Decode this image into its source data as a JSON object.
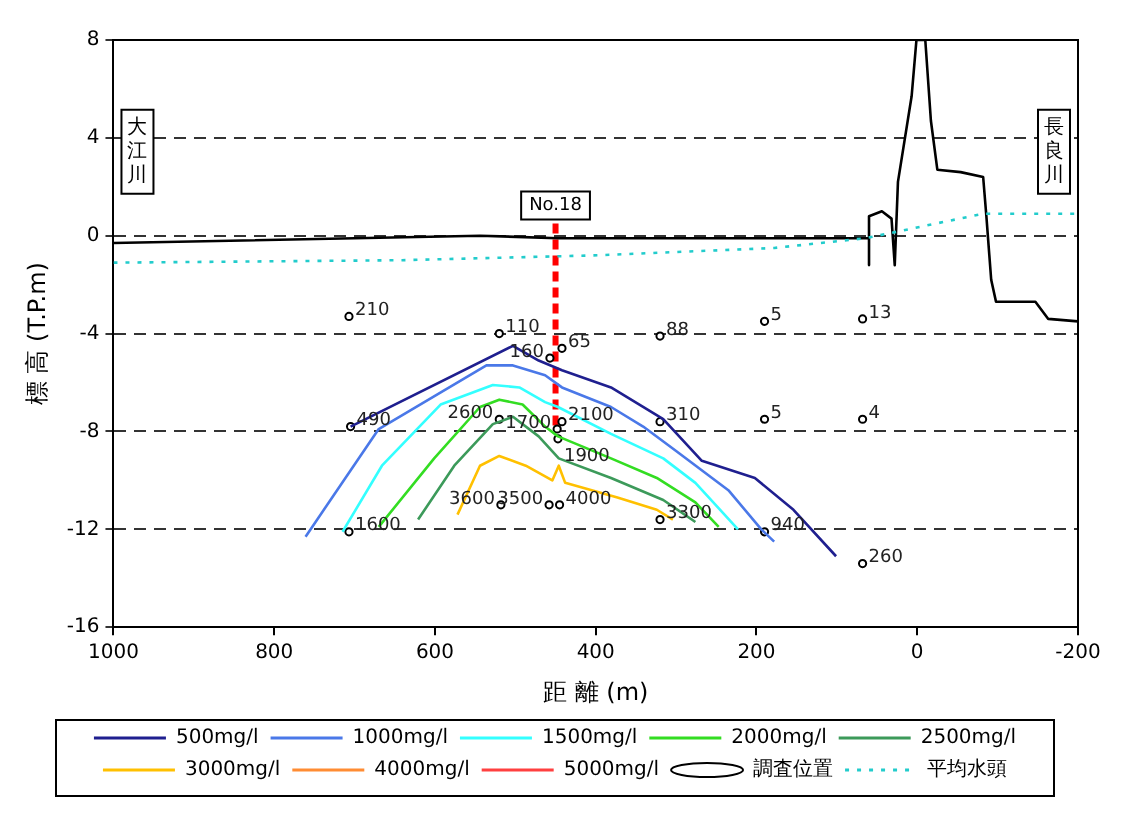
{
  "chart_data": {
    "type": "line",
    "xlabel": "距 離 (m)",
    "ylabel": "標 高 (T.P.m)",
    "xlim": [
      1000,
      -200
    ],
    "xticks": [
      1000,
      800,
      600,
      400,
      200,
      0,
      -200
    ],
    "ylim": [
      -16,
      8
    ],
    "yticks": [
      -16,
      -12,
      -8,
      -4,
      0,
      4,
      8
    ],
    "grid": "y",
    "legend": "bottom",
    "annotations": [
      "大江川",
      "長良川",
      {
        "text": "No.18",
        "x": 450,
        "y": 0.5
      },
      {
        "text": "210",
        "x": 707,
        "y": -3.3
      },
      {
        "text": "110",
        "x": 520,
        "y": -4.0
      },
      {
        "text": "65",
        "x": 442,
        "y": -4.6
      },
      {
        "text": "160",
        "x": 457,
        "y": -5.0
      },
      {
        "text": "490",
        "x": 705,
        "y": -7.8
      },
      {
        "text": "2600",
        "x": 520,
        "y": -7.5
      },
      {
        "text": "1700",
        "x": 448,
        "y": -7.9
      },
      {
        "text": "2100",
        "x": 442,
        "y": -7.6
      },
      {
        "text": "1900",
        "x": 447,
        "y": -8.3
      },
      {
        "text": "1600",
        "x": 707,
        "y": -12.1
      },
      {
        "text": "3600",
        "x": 518,
        "y": -11.0
      },
      {
        "text": "3500",
        "x": 458,
        "y": -11.0
      },
      {
        "text": "4000",
        "x": 445,
        "y": -11.0
      },
      {
        "text": "88",
        "x": 320,
        "y": -4.1
      },
      {
        "text": "5",
        "x": 190,
        "y": -3.5
      },
      {
        "text": "13",
        "x": 68,
        "y": -3.4
      },
      {
        "text": "310",
        "x": 320,
        "y": -7.6
      },
      {
        "text": "5",
        "x": 190,
        "y": -7.5
      },
      {
        "text": "4",
        "x": 68,
        "y": -7.5
      },
      {
        "text": "3300",
        "x": 320,
        "y": -11.6
      },
      {
        "text": "940",
        "x": 190,
        "y": -12.1
      },
      {
        "text": "260",
        "x": 68,
        "y": -13.4
      }
    ],
    "series": [
      {
        "name": "500mg/l",
        "color": "#1f1f8f",
        "x": [
          705,
          503,
          471,
          442,
          381,
          316,
          268,
          202,
          154,
          101
        ],
        "values": [
          -7.8,
          -4.5,
          -5.1,
          -5.5,
          -6.2,
          -7.5,
          -9.2,
          -9.9,
          -11.2,
          -13.1
        ]
      },
      {
        "name": "1000mg/l",
        "color": "#4a78e8",
        "x": [
          761,
          670,
          536,
          503,
          463,
          442,
          381,
          341,
          300,
          235,
          194,
          178
        ],
        "values": [
          -12.3,
          -7.9,
          -5.3,
          -5.3,
          -5.7,
          -6.2,
          -7.0,
          -7.8,
          -8.8,
          -10.4,
          -12.0,
          -12.5
        ]
      },
      {
        "name": "1500mg/l",
        "color": "#33ffff",
        "x": [
          715,
          666,
          593,
          528,
          495,
          463,
          447,
          381,
          316,
          276,
          223
        ],
        "values": [
          -12.1,
          -9.4,
          -6.9,
          -6.1,
          -6.2,
          -6.8,
          -7.0,
          -8.1,
          -9.1,
          -10.1,
          -12.0
        ]
      },
      {
        "name": "2000mg/l",
        "color": "#33dd22",
        "x": [
          670,
          601,
          544,
          520,
          491,
          463,
          447,
          381,
          324,
          276,
          247
        ],
        "values": [
          -11.9,
          -9.1,
          -7.0,
          -6.7,
          -6.9,
          -7.8,
          -8.2,
          -9.1,
          -9.9,
          -10.9,
          -11.9
        ]
      },
      {
        "name": "2500mg/l",
        "color": "#3c9a5a",
        "x": [
          621,
          576,
          528,
          503,
          471,
          446,
          381,
          316,
          276
        ],
        "values": [
          -11.6,
          -9.4,
          -7.7,
          -7.4,
          -8.2,
          -9.1,
          -9.9,
          -10.8,
          -11.7
        ]
      },
      {
        "name": "3000mg/l",
        "color": "#ffc000",
        "x": [
          572,
          544,
          520,
          487,
          454,
          446,
          438,
          373,
          324,
          304
        ],
        "values": [
          -11.4,
          -9.4,
          -9.0,
          -9.4,
          -10.0,
          -9.4,
          -10.1,
          -10.7,
          -11.2,
          -11.6
        ]
      },
      {
        "name": "4000mg/l",
        "color": "#ff8c33"
      },
      {
        "name": "5000mg/l",
        "color": "#ff4040"
      },
      {
        "name": "調査位置",
        "type": "scatter",
        "color": "#000000",
        "marker": "circle",
        "x": [
          707,
          520,
          442,
          457,
          705,
          520,
          448,
          442,
          447,
          707,
          518,
          458,
          445,
          320,
          190,
          68,
          320,
          190,
          68,
          320,
          190,
          68
        ],
        "values": [
          -3.3,
          -4.0,
          -4.6,
          -5.0,
          -7.8,
          -7.5,
          -7.9,
          -7.6,
          -8.3,
          -12.1,
          -11.0,
          -11.0,
          -11.0,
          -4.1,
          -3.5,
          -3.4,
          -7.6,
          -7.5,
          -7.5,
          -11.6,
          -12.1,
          -13.4
        ]
      },
      {
        "name": "平均水頭",
        "color": "#22cccc",
        "line_style": "dotted",
        "x": [
          1000,
          641,
          398,
          178,
          64,
          -82,
          -200
        ],
        "values": [
          -1.1,
          -1.0,
          -0.8,
          -0.5,
          -0.1,
          0.9,
          0.9
        ]
      },
      {
        "color": "#000000",
        "x": [
          1000,
          544,
          447,
          60,
          60,
          60,
          44,
          32,
          28,
          24,
          7,
          1,
          -10,
          -17,
          -25,
          -54,
          -82,
          -86,
          -92,
          -98,
          -147,
          -163,
          -200
        ],
        "values": [
          -0.3,
          0.0,
          -0.1,
          -0.1,
          -1.2,
          0.8,
          1.0,
          0.7,
          -1.2,
          2.2,
          5.7,
          8,
          8,
          4.7,
          2.7,
          2.6,
          2.4,
          0.8,
          -1.8,
          -2.7,
          -2.7,
          -3.4,
          -3.5
        ]
      },
      {
        "color": "#ff0000",
        "line_style": "dashed",
        "x": [
          450,
          450
        ],
        "values": [
          0.5,
          -8
        ]
      }
    ]
  }
}
